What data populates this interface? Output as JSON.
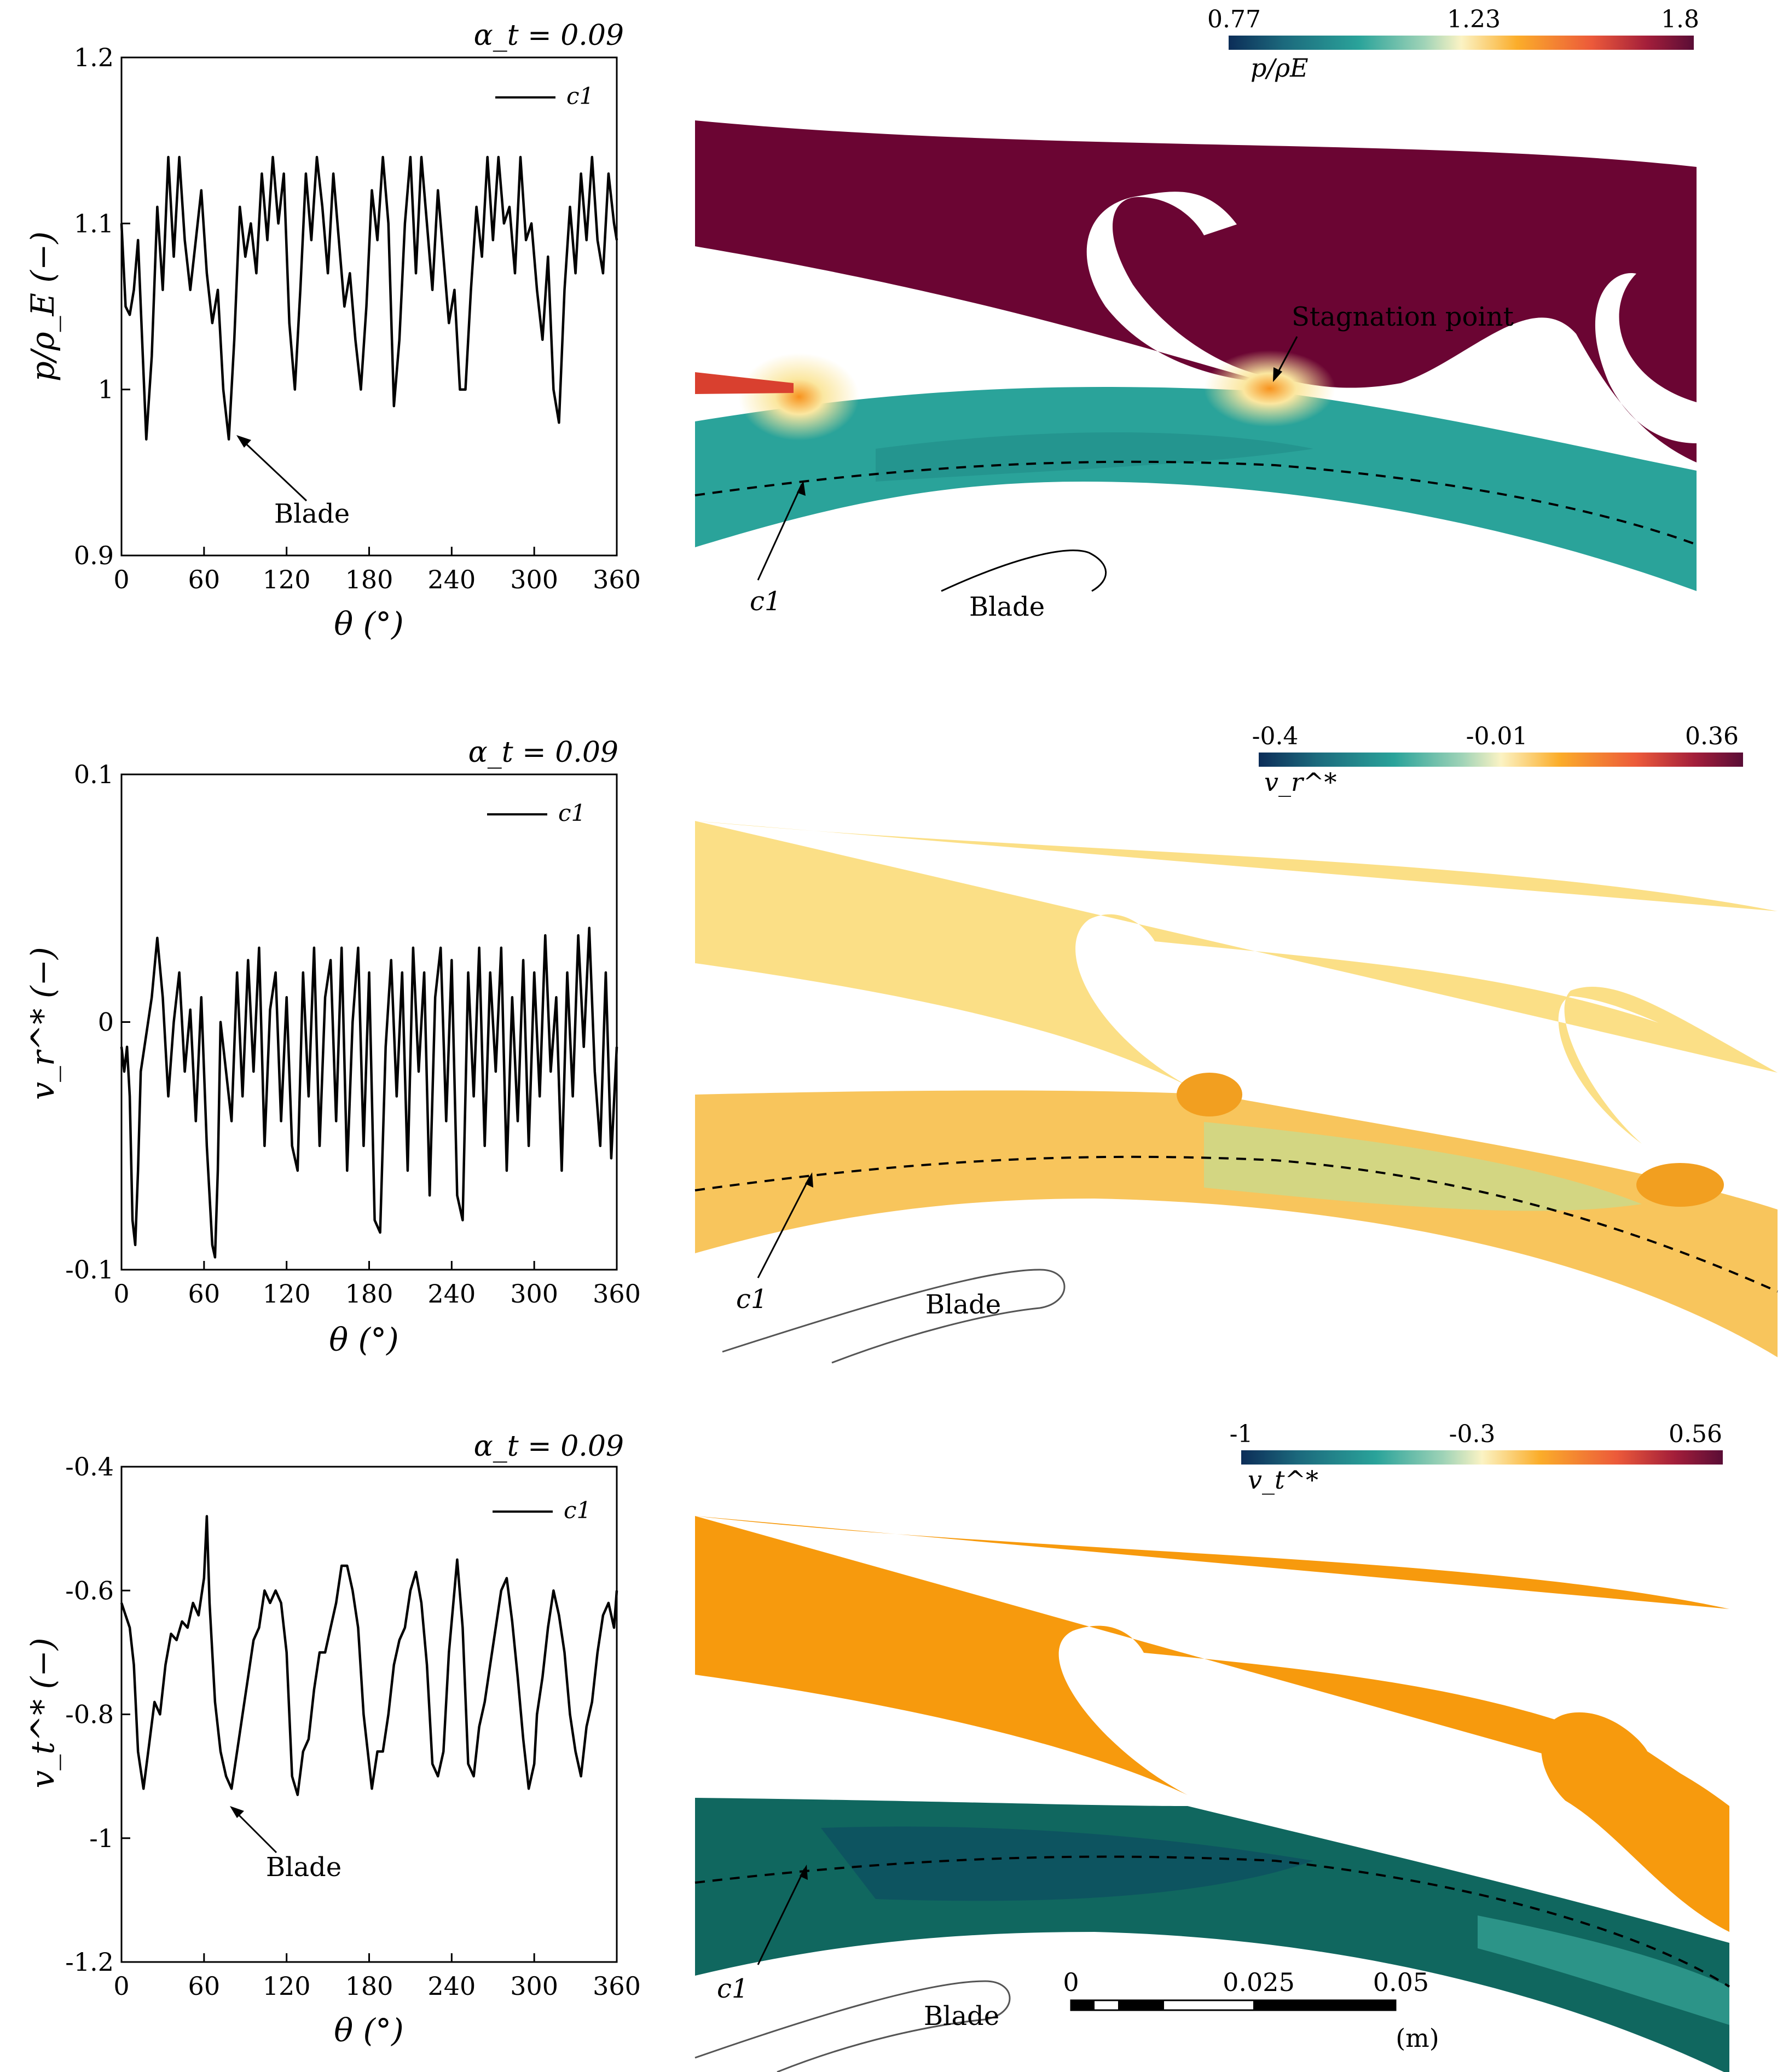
{
  "chart_data": [
    {
      "type": "line",
      "panel": "top-left",
      "title": "α_t = 0.09",
      "xlabel": "θ (°)",
      "ylabel": "p/ρ_E (−)",
      "xlim": [
        0,
        360
      ],
      "ylim": [
        0.9,
        1.2
      ],
      "xticks": [
        "0",
        "60",
        "120",
        "180",
        "240",
        "300",
        "360"
      ],
      "yticks": [
        "0.9",
        "1",
        "1.1",
        "1.2"
      ],
      "legend": "top-right",
      "series": [
        {
          "name": "c1",
          "x": [
            0,
            3,
            6,
            9,
            12,
            15,
            18,
            22,
            26,
            30,
            34,
            38,
            42,
            46,
            50,
            54,
            58,
            62,
            66,
            70,
            74,
            78,
            82,
            86,
            90,
            94,
            98,
            102,
            106,
            110,
            114,
            118,
            122,
            126,
            130,
            134,
            138,
            142,
            146,
            150,
            154,
            158,
            162,
            166,
            170,
            174,
            178,
            182,
            186,
            190,
            194,
            198,
            202,
            206,
            210,
            214,
            218,
            222,
            226,
            230,
            234,
            238,
            242,
            246,
            250,
            254,
            258,
            262,
            266,
            270,
            274,
            278,
            282,
            286,
            290,
            294,
            298,
            302,
            306,
            310,
            314,
            318,
            322,
            326,
            330,
            334,
            338,
            342,
            346,
            350,
            354,
            358,
            360
          ],
          "y": [
            1.1,
            1.05,
            1.045,
            1.06,
            1.09,
            1.03,
            0.97,
            1.02,
            1.11,
            1.06,
            1.14,
            1.08,
            1.14,
            1.09,
            1.06,
            1.09,
            1.12,
            1.07,
            1.04,
            1.06,
            1.0,
            0.97,
            1.03,
            1.11,
            1.08,
            1.1,
            1.07,
            1.13,
            1.09,
            1.14,
            1.1,
            1.13,
            1.04,
            1.0,
            1.06,
            1.13,
            1.09,
            1.14,
            1.11,
            1.07,
            1.13,
            1.09,
            1.05,
            1.07,
            1.03,
            1.0,
            1.05,
            1.12,
            1.09,
            1.14,
            1.1,
            0.99,
            1.03,
            1.1,
            1.14,
            1.07,
            1.14,
            1.1,
            1.06,
            1.12,
            1.08,
            1.04,
            1.06,
            1.0,
            1.0,
            1.06,
            1.11,
            1.08,
            1.14,
            1.09,
            1.14,
            1.1,
            1.11,
            1.07,
            1.14,
            1.09,
            1.1,
            1.06,
            1.03,
            1.08,
            1.0,
            0.98,
            1.06,
            1.11,
            1.07,
            1.13,
            1.09,
            1.14,
            1.09,
            1.07,
            1.13,
            1.1,
            1.09
          ]
        }
      ],
      "annotation": "Blade"
    },
    {
      "type": "line",
      "panel": "middle-left",
      "title": "α_t = 0.09",
      "xlabel": "θ (°)",
      "ylabel": "v_r^* (−)",
      "xlim": [
        0,
        360
      ],
      "ylim": [
        -0.1,
        0.1
      ],
      "xticks": [
        "0",
        "60",
        "120",
        "180",
        "240",
        "300",
        "360"
      ],
      "yticks": [
        "-0.1",
        "0",
        "0.1"
      ],
      "legend": "top-right",
      "series": [
        {
          "name": "c1",
          "x": [
            0,
            2,
            4,
            6,
            8,
            10,
            12,
            14,
            18,
            22,
            26,
            30,
            34,
            38,
            42,
            46,
            50,
            54,
            58,
            62,
            66,
            68,
            70,
            72,
            76,
            80,
            84,
            88,
            92,
            96,
            100,
            104,
            108,
            112,
            116,
            120,
            124,
            128,
            132,
            136,
            140,
            144,
            148,
            152,
            156,
            160,
            164,
            168,
            172,
            176,
            180,
            184,
            188,
            192,
            196,
            200,
            204,
            208,
            212,
            216,
            220,
            224,
            228,
            232,
            236,
            240,
            244,
            248,
            252,
            256,
            260,
            264,
            268,
            272,
            276,
            280,
            284,
            288,
            292,
            296,
            300,
            304,
            308,
            312,
            316,
            320,
            324,
            328,
            332,
            336,
            340,
            344,
            348,
            352,
            356,
            360
          ],
          "y": [
            -0.01,
            -0.02,
            -0.01,
            -0.03,
            -0.08,
            -0.09,
            -0.06,
            -0.02,
            -0.005,
            0.01,
            0.034,
            0.01,
            -0.03,
            0.0,
            0.02,
            -0.02,
            0.005,
            -0.04,
            0.01,
            -0.05,
            -0.09,
            -0.095,
            -0.06,
            0.0,
            -0.02,
            -0.04,
            0.02,
            -0.03,
            0.025,
            -0.02,
            0.03,
            -0.05,
            0.005,
            0.02,
            -0.04,
            0.01,
            -0.05,
            -0.06,
            0.02,
            -0.03,
            0.03,
            -0.05,
            0.01,
            0.025,
            -0.04,
            0.03,
            -0.06,
            0.0,
            0.03,
            -0.05,
            0.02,
            -0.08,
            -0.085,
            -0.01,
            0.025,
            -0.03,
            0.02,
            -0.06,
            0.03,
            -0.02,
            0.02,
            -0.07,
            0.01,
            0.03,
            -0.04,
            0.025,
            -0.07,
            -0.08,
            0.02,
            -0.03,
            0.03,
            -0.05,
            0.02,
            -0.02,
            0.03,
            -0.06,
            0.01,
            -0.04,
            0.025,
            -0.05,
            0.02,
            -0.03,
            0.035,
            -0.02,
            0.01,
            -0.06,
            0.02,
            -0.03,
            0.035,
            -0.01,
            0.038,
            -0.02,
            -0.05,
            0.02,
            -0.055,
            -0.01
          ]
        }
      ]
    },
    {
      "type": "line",
      "panel": "bottom-left",
      "title": "α_t = 0.09",
      "xlabel": "θ (°)",
      "ylabel": "v_t^* (−)",
      "xlim": [
        0,
        360
      ],
      "ylim": [
        -1.2,
        -0.4
      ],
      "xticks": [
        "0",
        "60",
        "120",
        "180",
        "240",
        "300",
        "360"
      ],
      "yticks": [
        "-1.2",
        "-1",
        "-0.8",
        "-0.6",
        "-0.4"
      ],
      "legend": "top-right",
      "series": [
        {
          "name": "c1",
          "x": [
            0,
            3,
            6,
            9,
            12,
            16,
            20,
            24,
            28,
            32,
            36,
            40,
            44,
            48,
            52,
            56,
            60,
            62,
            64,
            68,
            72,
            76,
            80,
            84,
            88,
            92,
            96,
            100,
            104,
            108,
            112,
            116,
            120,
            124,
            128,
            132,
            136,
            140,
            144,
            148,
            152,
            156,
            160,
            164,
            168,
            172,
            176,
            180,
            182,
            186,
            190,
            194,
            198,
            202,
            206,
            210,
            214,
            218,
            222,
            226,
            230,
            234,
            238,
            242,
            244,
            248,
            252,
            256,
            260,
            264,
            268,
            272,
            276,
            280,
            284,
            288,
            292,
            296,
            300,
            302,
            306,
            310,
            314,
            318,
            322,
            326,
            330,
            334,
            338,
            342,
            346,
            350,
            354,
            358,
            360
          ],
          "y": [
            -0.62,
            -0.64,
            -0.66,
            -0.72,
            -0.86,
            -0.92,
            -0.85,
            -0.78,
            -0.8,
            -0.72,
            -0.67,
            -0.68,
            -0.65,
            -0.66,
            -0.62,
            -0.64,
            -0.58,
            -0.48,
            -0.62,
            -0.78,
            -0.86,
            -0.9,
            -0.92,
            -0.86,
            -0.8,
            -0.74,
            -0.68,
            -0.66,
            -0.6,
            -0.62,
            -0.6,
            -0.62,
            -0.7,
            -0.9,
            -0.93,
            -0.86,
            -0.84,
            -0.76,
            -0.7,
            -0.7,
            -0.66,
            -0.62,
            -0.56,
            -0.56,
            -0.6,
            -0.66,
            -0.8,
            -0.88,
            -0.92,
            -0.86,
            -0.86,
            -0.8,
            -0.72,
            -0.68,
            -0.66,
            -0.6,
            -0.57,
            -0.62,
            -0.72,
            -0.88,
            -0.9,
            -0.86,
            -0.7,
            -0.6,
            -0.55,
            -0.66,
            -0.88,
            -0.9,
            -0.82,
            -0.78,
            -0.72,
            -0.66,
            -0.6,
            -0.58,
            -0.65,
            -0.74,
            -0.84,
            -0.92,
            -0.88,
            -0.8,
            -0.74,
            -0.66,
            -0.6,
            -0.64,
            -0.7,
            -0.8,
            -0.86,
            -0.9,
            -0.82,
            -0.78,
            -0.7,
            -0.64,
            -0.62,
            -0.66,
            -0.6
          ]
        }
      ],
      "annotation": "Blade"
    }
  ],
  "contours": [
    {
      "panel": "top-right",
      "colorbar": {
        "ticks": [
          "0.77",
          "1.23",
          "1.8"
        ],
        "label": "p/ρE"
      },
      "annotations": {
        "stagnation": "Stagnation point",
        "probe": "c1",
        "blade": "Blade"
      },
      "colors": {
        "upper": "#6b0533",
        "lower": "#2aa39a",
        "hot": "#f28d18"
      }
    },
    {
      "panel": "middle-right",
      "colorbar": {
        "ticks": [
          "-0.4",
          "-0.01",
          "0.36"
        ],
        "label": "v_r^*"
      },
      "annotations": {
        "probe": "c1",
        "blade": "Blade"
      },
      "colors": {
        "upper": "#fbdf86",
        "lower": "#f8c55c",
        "hot": "#f29f20"
      }
    },
    {
      "panel": "bottom-right",
      "colorbar": {
        "ticks": [
          "-1",
          "-0.3",
          "0.56"
        ],
        "label": "v_t^*"
      },
      "annotations": {
        "probe": "c1",
        "blade": "Blade"
      },
      "colors": {
        "upper": "#f79a0d",
        "lower": "#10675f",
        "hot": "#f3b83a"
      }
    }
  ],
  "scalebar": {
    "ticks": [
      "0",
      "0.025",
      "0.05"
    ],
    "unit": "(m)"
  }
}
